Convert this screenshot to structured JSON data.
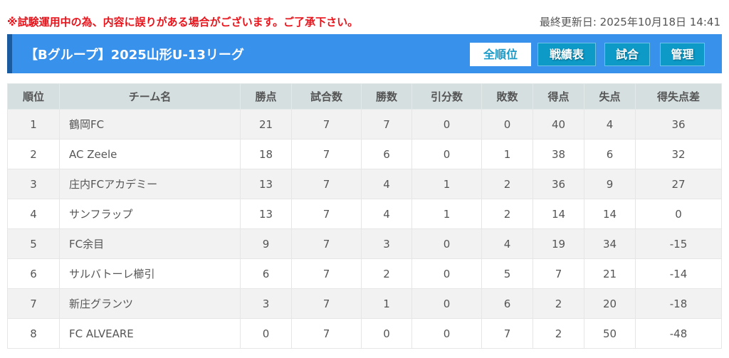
{
  "notice": "※試験運用中の為、内容に誤りがある場合がございます。ご了承下さい。",
  "updated": "最終更新日: 2025年10月18日 14:41",
  "header": {
    "title": "【Bグループ】2025山形U-13リーグ",
    "buttons": [
      "全順位",
      "戦績表",
      "試合",
      "管理"
    ],
    "active": "全順位"
  },
  "table": {
    "columns": [
      "順位",
      "チーム名",
      "勝点",
      "試合数",
      "勝数",
      "引分数",
      "敗数",
      "得点",
      "失点",
      "得失点差"
    ],
    "rows": [
      [
        "1",
        "鶴岡FC",
        "21",
        "7",
        "7",
        "0",
        "0",
        "40",
        "4",
        "36"
      ],
      [
        "2",
        "AC Zeele",
        "18",
        "7",
        "6",
        "0",
        "1",
        "38",
        "6",
        "32"
      ],
      [
        "3",
        "庄内FCアカデミー",
        "13",
        "7",
        "4",
        "1",
        "2",
        "36",
        "9",
        "27"
      ],
      [
        "4",
        "サンフラップ",
        "13",
        "7",
        "4",
        "1",
        "2",
        "14",
        "14",
        "0"
      ],
      [
        "5",
        "FC余目",
        "9",
        "7",
        "3",
        "0",
        "4",
        "19",
        "34",
        "-15"
      ],
      [
        "6",
        "サルバトーレ櫛引",
        "6",
        "7",
        "2",
        "0",
        "5",
        "7",
        "21",
        "-14"
      ],
      [
        "7",
        "新庄グランツ",
        "3",
        "7",
        "1",
        "0",
        "6",
        "2",
        "20",
        "-18"
      ],
      [
        "8",
        "FC ALVEARE",
        "0",
        "7",
        "0",
        "0",
        "7",
        "2",
        "50",
        "-48"
      ]
    ]
  }
}
